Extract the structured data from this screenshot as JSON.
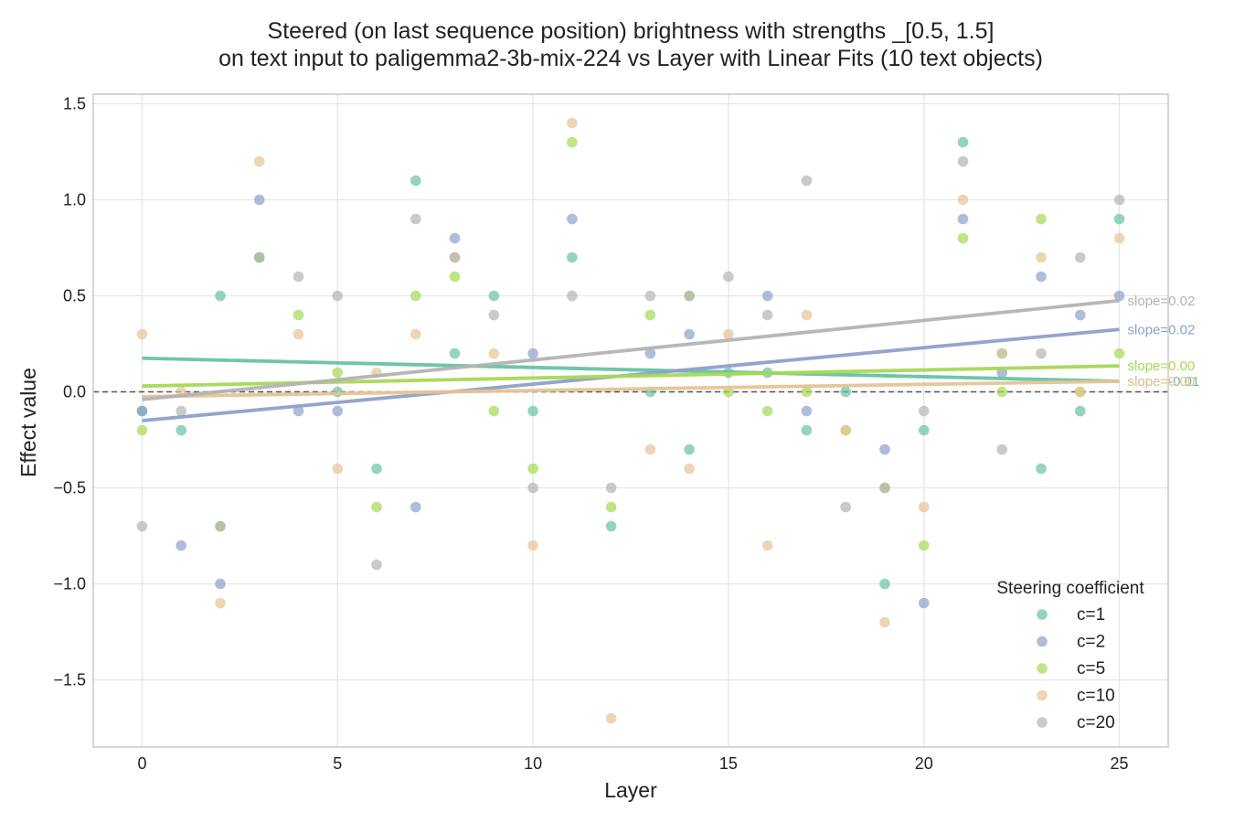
{
  "chart_data": {
    "type": "scatter",
    "title_lines": [
      "Steered (on last sequence position) brightness with strengths _[0.5, 1.5]",
      "on text input to paligemma2-3b-mix-224 vs Layer with Linear Fits (10 text objects)"
    ],
    "xlabel": "Layer",
    "ylabel": "Effect value",
    "xlim": [
      -1.25,
      26.25
    ],
    "ylim": [
      -1.85,
      1.55
    ],
    "xticks": [
      0,
      5,
      10,
      15,
      20,
      25
    ],
    "yticks": [
      -1.5,
      -1.0,
      -0.5,
      0.0,
      0.5,
      1.0,
      1.5
    ],
    "xtick_labels": [
      "0",
      "5",
      "10",
      "15",
      "20",
      "25"
    ],
    "ytick_labels": [
      "−1.5",
      "−1.0",
      "−0.5",
      "0.0",
      "0.5",
      "1.0",
      "1.5"
    ],
    "grid": true,
    "reference_line": {
      "y": 0.0,
      "style": "dashed",
      "color": "#555555"
    },
    "legend": {
      "title": "Steering coefficient",
      "placement": "lower right"
    },
    "series": [
      {
        "name": "c=1",
        "color": "#66c2a5",
        "x": [
          0,
          1,
          2,
          3,
          5,
          6,
          7,
          8,
          9,
          10,
          11,
          12,
          13,
          14,
          15,
          16,
          17,
          18,
          19,
          20,
          21,
          22,
          23,
          24,
          25
        ],
        "y": [
          -0.1,
          -0.2,
          0.5,
          0.7,
          0.0,
          -0.4,
          1.1,
          0.2,
          0.5,
          -0.1,
          0.7,
          -0.7,
          0.0,
          -0.3,
          0.1,
          0.1,
          -0.2,
          0.0,
          -1.0,
          -0.2,
          1.3,
          0.2,
          -0.4,
          -0.1,
          0.9
        ],
        "fit": {
          "x0": 0,
          "y0": 0.175,
          "x1": 25,
          "y1": 0.055
        },
        "slope_label": "slope=-0.01"
      },
      {
        "name": "c=2",
        "color": "#8da0cb",
        "x": [
          0,
          1,
          2,
          3,
          4,
          5,
          7,
          8,
          10,
          11,
          13,
          14,
          16,
          17,
          19,
          20,
          21,
          22,
          23,
          24,
          25
        ],
        "y": [
          -0.1,
          -0.8,
          -1.0,
          1.0,
          -0.1,
          -0.1,
          -0.6,
          0.8,
          0.2,
          0.9,
          0.2,
          0.3,
          0.5,
          -0.1,
          -0.3,
          -1.1,
          0.9,
          0.1,
          0.6,
          0.4,
          0.5
        ],
        "fit": {
          "x0": 0,
          "y0": -0.15,
          "x1": 25,
          "y1": 0.325
        },
        "slope_label": "slope=0.02"
      },
      {
        "name": "c=5",
        "color": "#a6d854",
        "x": [
          0,
          2,
          3,
          4,
          5,
          6,
          7,
          8,
          9,
          10,
          11,
          12,
          13,
          14,
          15,
          16,
          17,
          18,
          19,
          20,
          21,
          22,
          23,
          24,
          25
        ],
        "y": [
          -0.2,
          -0.7,
          0.7,
          0.4,
          0.1,
          -0.6,
          0.5,
          0.6,
          -0.1,
          -0.4,
          1.3,
          -0.6,
          0.4,
          0.5,
          0.0,
          -0.1,
          0.0,
          -0.2,
          -0.5,
          -0.8,
          0.8,
          0.0,
          0.9,
          0.0,
          0.2
        ],
        "fit": {
          "x0": 0,
          "y0": 0.03,
          "x1": 25,
          "y1": 0.135
        },
        "slope_label": "slope=0.00"
      },
      {
        "name": "c=10",
        "color": "#e5c494",
        "x": [
          0,
          1,
          2,
          3,
          4,
          5,
          6,
          7,
          8,
          9,
          10,
          11,
          12,
          13,
          14,
          15,
          16,
          17,
          18,
          19,
          20,
          21,
          22,
          23,
          24,
          25
        ],
        "y": [
          0.3,
          0.0,
          -1.1,
          1.2,
          0.3,
          -0.4,
          0.1,
          0.3,
          0.7,
          0.2,
          -0.8,
          1.4,
          -1.7,
          -0.3,
          -0.4,
          0.3,
          -0.8,
          0.4,
          -0.2,
          -1.2,
          -0.6,
          1.0,
          0.2,
          0.7,
          0.0,
          0.8
        ],
        "fit": {
          "x0": 0,
          "y0": -0.025,
          "x1": 25,
          "y1": 0.055
        },
        "slope_label": "slope=0.00"
      },
      {
        "name": "c=20",
        "color": "#b3b3b3",
        "x": [
          0,
          1,
          2,
          3,
          4,
          5,
          6,
          7,
          8,
          9,
          10,
          11,
          12,
          13,
          14,
          15,
          16,
          17,
          18,
          19,
          20,
          21,
          22,
          23,
          24,
          25
        ],
        "y": [
          -0.7,
          -0.1,
          -0.7,
          0.7,
          0.6,
          0.5,
          -0.9,
          0.9,
          0.7,
          0.4,
          -0.5,
          0.5,
          -0.5,
          0.5,
          0.5,
          0.6,
          0.4,
          1.1,
          -0.6,
          -0.5,
          -0.1,
          1.2,
          -0.3,
          0.2,
          0.7,
          1.0
        ],
        "fit": {
          "x0": 0,
          "y0": -0.04,
          "x1": 25,
          "y1": 0.475
        },
        "slope_label": "slope=0.02"
      }
    ]
  }
}
